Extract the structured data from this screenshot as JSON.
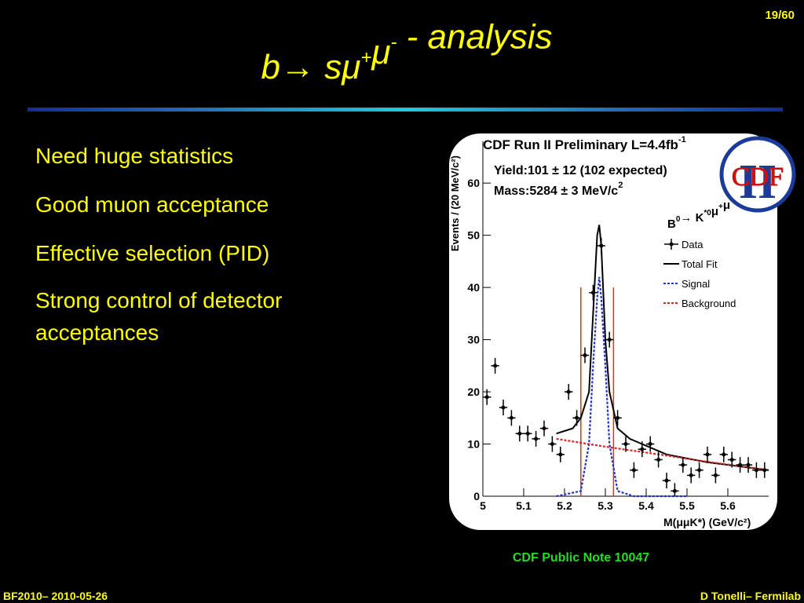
{
  "page_number": "19/60",
  "title_parts": [
    "b",
    "→ s",
    "μ",
    {
      "sup": "+"
    },
    "μ",
    {
      "sup": "-"
    },
    "  - analysis"
  ],
  "bullets": [
    "Need huge statistics",
    "Good muon acceptance",
    "Effective selection (PID)",
    "Strong control of detector",
    "acceptances"
  ],
  "figure_note": "CDF Public Note 10047",
  "footer_left": "BF2010– 2010-05-26",
  "footer_right": "D Tonelli– Fermilab",
  "chart_data": {
    "type": "scatter",
    "title_parts": [
      "CDF Run II Preliminary L=4.4fb",
      {
        "sup": "-1"
      }
    ],
    "yield_text": "Yield:101 ± 12 (102 expected)",
    "mass_parts": [
      "Mass:5284 ± 3 MeV/c",
      {
        "sup": "2"
      }
    ],
    "decay_parts": [
      "B",
      {
        "sup": "0"
      },
      "→ K",
      {
        "sup": "*0"
      },
      "μ",
      {
        "sup": "+"
      },
      "μ",
      {
        "sup": "-"
      }
    ],
    "logo_text": "CDF",
    "logo_sub": "II",
    "xlabel": "M(μμK*) (GeV/c²)",
    "ylabel": "Events / (20 MeV/c²)",
    "xlim": [
      5,
      5.7
    ],
    "ylim": [
      0,
      68
    ],
    "xticks": [
      5,
      5.1,
      5.2,
      5.3,
      5.4,
      5.5,
      5.6
    ],
    "yticks": [
      0,
      10,
      20,
      30,
      40,
      50,
      60
    ],
    "x": [
      5.01,
      5.03,
      5.05,
      5.07,
      5.09,
      5.11,
      5.13,
      5.15,
      5.17,
      5.19,
      5.21,
      5.23,
      5.25,
      5.27,
      5.29,
      5.31,
      5.33,
      5.35,
      5.37,
      5.39,
      5.41,
      5.43,
      5.45,
      5.47,
      5.49,
      5.51,
      5.53,
      5.55,
      5.57,
      5.59,
      5.61,
      5.63,
      5.65,
      5.67,
      5.69
    ],
    "series": [
      {
        "name": "Data",
        "color": "#000000",
        "values": [
          19,
          25,
          17,
          15,
          12,
          12,
          11,
          13,
          10,
          8,
          20,
          15,
          27,
          39,
          48,
          30,
          15,
          10,
          5,
          9,
          10,
          7,
          3,
          1,
          6,
          4,
          5,
          8,
          4,
          8,
          7,
          6,
          6,
          5,
          5
        ]
      }
    ],
    "curves": [
      {
        "name": "Total Fit",
        "color": "#000000",
        "style": "solid",
        "x": [
          5.18,
          5.22,
          5.24,
          5.26,
          5.27,
          5.28,
          5.285,
          5.29,
          5.3,
          5.31,
          5.33,
          5.36,
          5.45,
          5.55,
          5.7
        ],
        "values": [
          12,
          13,
          15,
          20,
          35,
          50,
          52,
          48,
          30,
          20,
          13,
          11,
          8,
          6.5,
          5
        ]
      },
      {
        "name": "Signal",
        "color": "#2233cc",
        "style": "dotted",
        "x": [
          5.18,
          5.24,
          5.26,
          5.27,
          5.28,
          5.285,
          5.29,
          5.3,
          5.31,
          5.33,
          5.37,
          5.5
        ],
        "values": [
          0,
          1,
          10,
          25,
          38,
          42,
          38,
          25,
          10,
          1,
          0,
          0
        ]
      },
      {
        "name": "Background",
        "color": "#dd2222",
        "style": "dotted",
        "x": [
          5.18,
          5.3,
          5.45,
          5.55,
          5.7
        ],
        "values": [
          11,
          9.5,
          7.8,
          6.6,
          5
        ]
      }
    ],
    "window": [
      5.24,
      5.32
    ],
    "window_height": 40
  }
}
